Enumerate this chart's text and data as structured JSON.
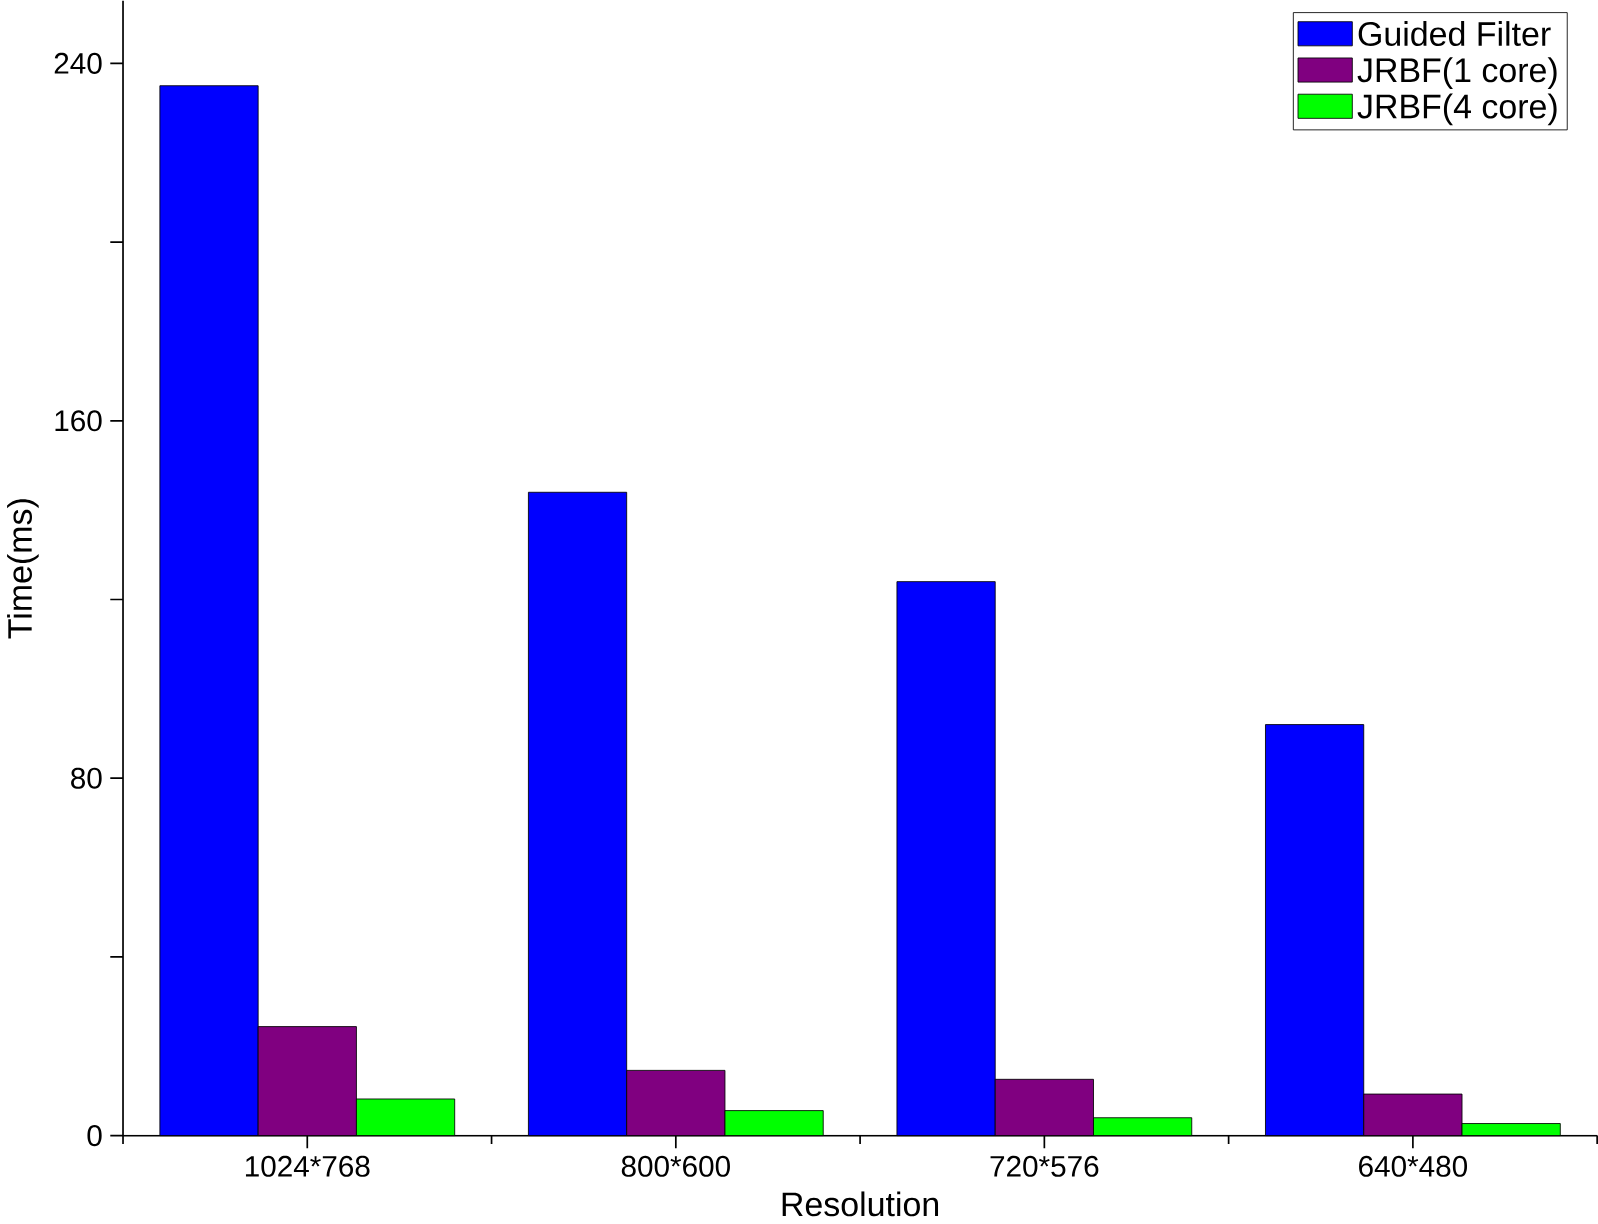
{
  "chart_data": {
    "type": "bar",
    "xlabel": "Resolution",
    "ylabel": "Time(ms)",
    "categories": [
      "1024*768",
      "800*600",
      "720*576",
      "640*480"
    ],
    "series": [
      {
        "name": "Guided Filter",
        "color": "#0000ff",
        "values": [
          235,
          144,
          124,
          92
        ]
      },
      {
        "name": "JRBF(1 core)",
        "color": "#800080",
        "values": [
          24.4,
          14.6,
          12.6,
          9.3
        ]
      },
      {
        "name": "JRBF(4 core)",
        "color": "#00ff00",
        "values": [
          8.2,
          5.6,
          4.0,
          2.7
        ]
      }
    ],
    "ylim": [
      0,
      254
    ],
    "yticks": [
      0,
      {
        "value": 40,
        "label": null
      },
      80,
      {
        "value": 120,
        "label": null
      },
      160,
      {
        "value": 200,
        "label": null
      },
      240
    ],
    "legend": "top right",
    "grid": false
  }
}
